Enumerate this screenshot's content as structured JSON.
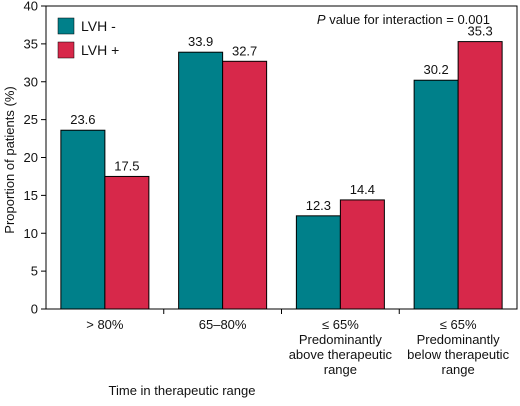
{
  "chart_data": {
    "type": "bar",
    "categories": [
      [
        "> 80%"
      ],
      [
        "65–80%"
      ],
      [
        "≤ 65%",
        "Predominantly",
        "above therapeutic",
        "range"
      ],
      [
        "≤ 65%",
        "Predominantly",
        "below therapeutic",
        "range"
      ]
    ],
    "series": [
      {
        "name": "LVH -",
        "values": [
          23.6,
          33.9,
          12.3,
          30.2
        ],
        "color": "#00808a"
      },
      {
        "name": "LVH +",
        "values": [
          17.5,
          32.7,
          14.4,
          35.3
        ],
        "color": "#d7284a"
      }
    ],
    "value_labels": [
      [
        "23.6",
        "33.9",
        "12.3",
        "30.2"
      ],
      [
        "17.5",
        "32.7",
        "14.4",
        "35.3"
      ]
    ],
    "ylim": [
      0,
      40
    ],
    "yticks": [
      0,
      5,
      10,
      15,
      20,
      25,
      30,
      35,
      40
    ],
    "xlabel": "Time in therapeutic range",
    "ylabel": "Proportion of patients (%)",
    "annotation": {
      "italic": "P",
      "text": " value for interaction = 0.001"
    },
    "legend_position": "top-left",
    "grid": false
  }
}
